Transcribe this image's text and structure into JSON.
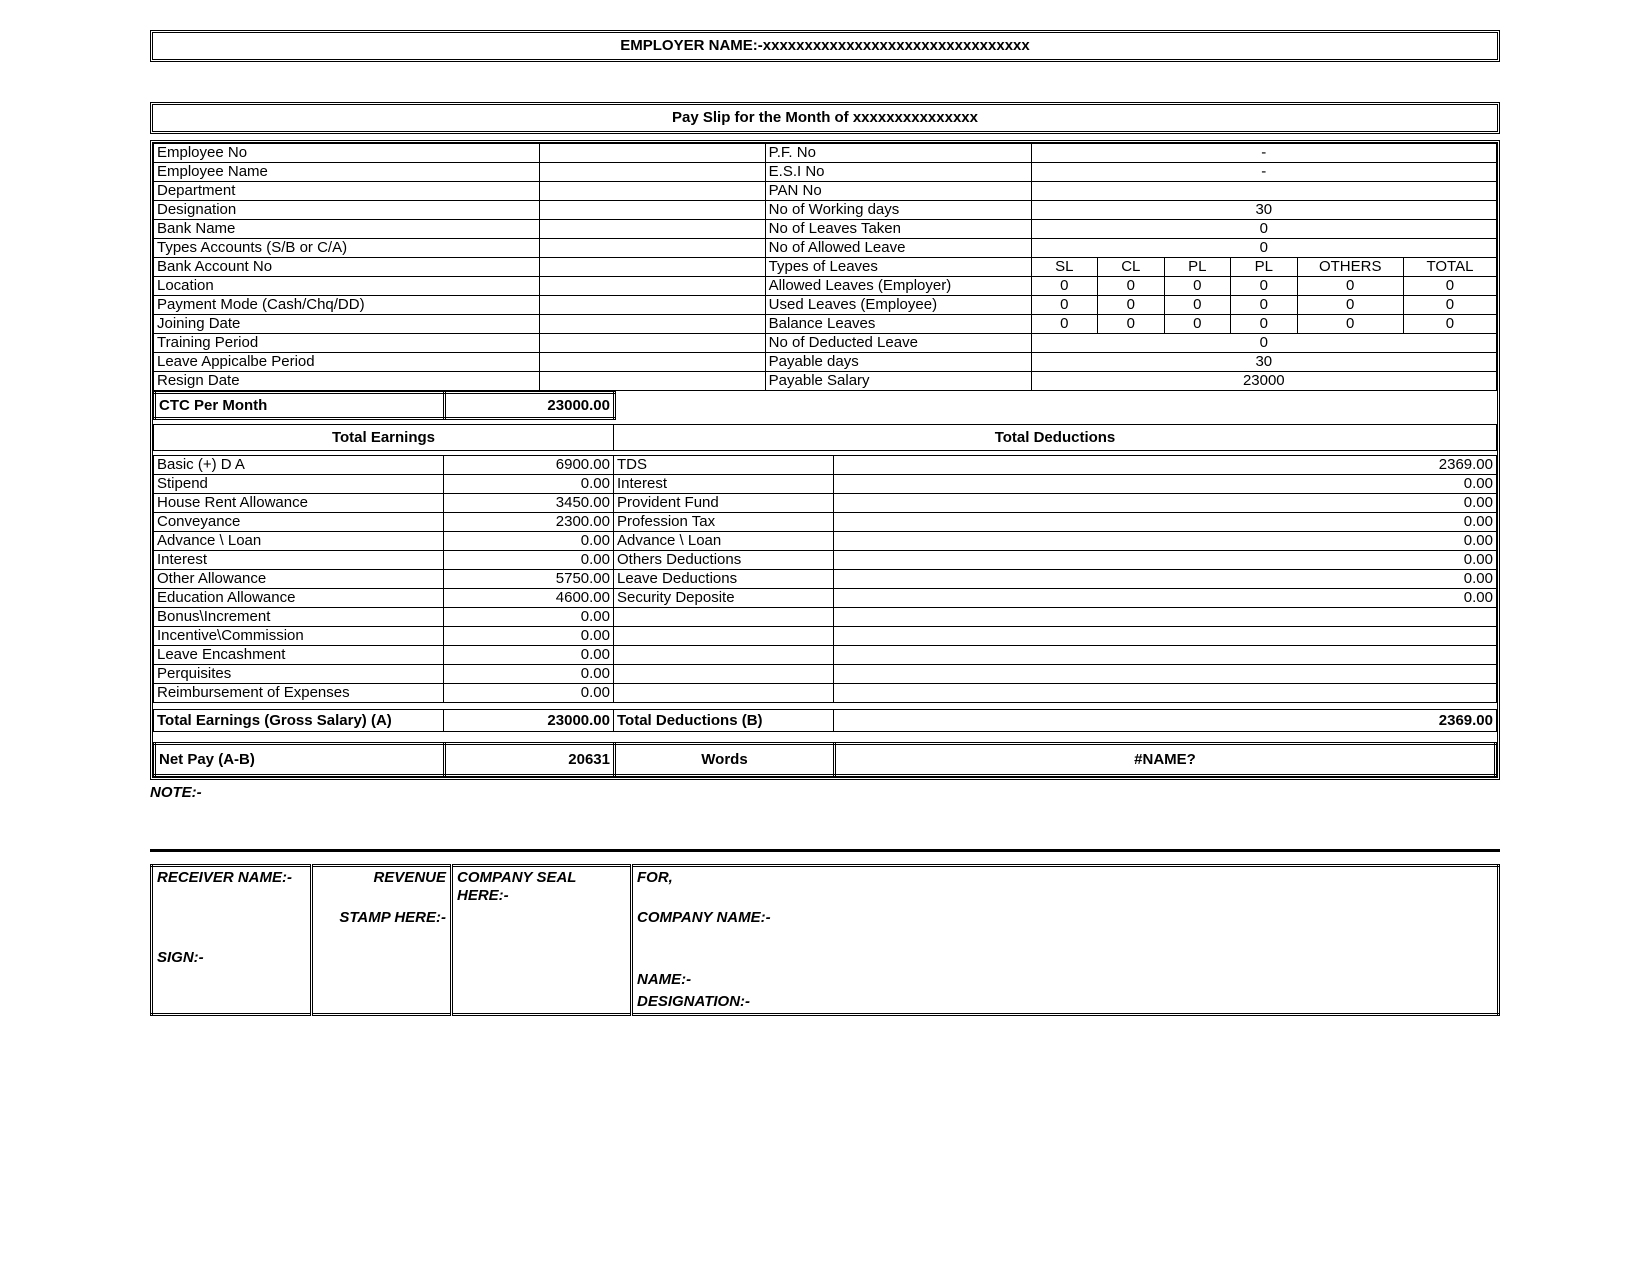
{
  "header": {
    "employer_label": "EMPLOYER NAME:-xxxxxxxxxxxxxxxxxxxxxxxxxxxxxxxx",
    "payslip_label": "Pay Slip for the Month of xxxxxxxxxxxxxxx"
  },
  "emp_left": {
    "l1": "Employee No",
    "l2": "Employee Name",
    "l3": "Department",
    "l4": "Designation",
    "l5": "Bank Name",
    "l6": "Types Accounts (S/B or C/A)",
    "l7": "Bank Account No",
    "l8": "Location",
    "l9": "Payment Mode (Cash/Chq/DD)",
    "l10": "Joining Date",
    "l11": "Training Period",
    "l12": "Leave Appicalbe Period",
    "l13": "Resign Date"
  },
  "emp_right": {
    "r1_label": "P.F. No",
    "r1_val": "-",
    "r2_label": "E.S.I No",
    "r2_val": "-",
    "r3_label": "PAN No",
    "r3_val": "",
    "r4_label": "No of Working days",
    "r4_val": "30",
    "r5_label": "No of Leaves Taken",
    "r5_val": "0",
    "r6_label": "No of Allowed Leave",
    "r6_val": "0",
    "r7_label": "Types of Leaves",
    "leave_hdr": {
      "c1": "SL",
      "c2": "CL",
      "c3": "PL",
      "c4": "PL",
      "c5": "OTHERS",
      "c6": "TOTAL"
    },
    "r8_label": "Allowed Leaves (Employer)",
    "r8": {
      "c1": "0",
      "c2": "0",
      "c3": "0",
      "c4": "0",
      "c5": "0",
      "c6": "0"
    },
    "r9_label": "Used Leaves (Employee)",
    "r9": {
      "c1": "0",
      "c2": "0",
      "c3": "0",
      "c4": "0",
      "c5": "0",
      "c6": "0"
    },
    "r10_label": "Balance Leaves",
    "r10": {
      "c1": "0",
      "c2": "0",
      "c3": "0",
      "c4": "0",
      "c5": "0",
      "c6": "0"
    },
    "r11_label": "No of Deducted Leave",
    "r11_val": "0",
    "r12_label": "Payable days",
    "r12_val": "30",
    "r13_label": "Payable Salary",
    "r13_val": "23000"
  },
  "ctc": {
    "label": "CTC Per Month",
    "value": "23000.00"
  },
  "sections": {
    "earn": "Total Earnings",
    "ded": "Total Deductions"
  },
  "earnings": [
    {
      "label": "Basic (+) D A",
      "value": "6900.00"
    },
    {
      "label": "Stipend",
      "value": "0.00"
    },
    {
      "label": "House Rent Allowance",
      "value": "3450.00"
    },
    {
      "label": "Conveyance",
      "value": "2300.00"
    },
    {
      "label": "Advance \\ Loan",
      "value": "0.00"
    },
    {
      "label": "Interest",
      "value": "0.00"
    },
    {
      "label": "Other Allowance",
      "value": "5750.00"
    },
    {
      "label": "Education Allowance",
      "value": "4600.00"
    },
    {
      "label": "Bonus\\Increment",
      "value": "0.00"
    },
    {
      "label": "Incentive\\Commission",
      "value": "0.00"
    },
    {
      "label": "Leave Encashment",
      "value": "0.00"
    },
    {
      "label": "Perquisites",
      "value": "0.00"
    },
    {
      "label": "Reimbursement of Expenses",
      "value": "0.00"
    }
  ],
  "deductions": [
    {
      "label": "TDS",
      "value": "2369.00"
    },
    {
      "label": "Interest",
      "value": "0.00"
    },
    {
      "label": "Provident Fund",
      "value": "0.00"
    },
    {
      "label": "Profession Tax",
      "value": "0.00"
    },
    {
      "label": "Advance \\ Loan",
      "value": "0.00"
    },
    {
      "label": "Others Deductions",
      "value": "0.00"
    },
    {
      "label": "Leave Deductions",
      "value": "0.00"
    },
    {
      "label": "Security Deposite",
      "value": "0.00"
    }
  ],
  "totals": {
    "earn_label": "Total Earnings (Gross Salary) (A)",
    "earn_value": "23000.00",
    "ded_label": "Total Deductions (B)",
    "ded_value": "2369.00",
    "net_label": "Net Pay (A-B)",
    "net_value": "20631",
    "words_label": "Words",
    "words_value": "#NAME?"
  },
  "note_label": "NOTE:-",
  "footer": {
    "receiver": "RECEIVER NAME:-",
    "sign": "SIGN:-",
    "revenue1": "REVENUE",
    "revenue2": "STAMP HERE:-",
    "seal": "COMPANY SEAL HERE:-",
    "for": "FOR,",
    "company": "COMPANY NAME:-",
    "name": "NAME:-",
    "designation": "DESIGNATION:-"
  }
}
